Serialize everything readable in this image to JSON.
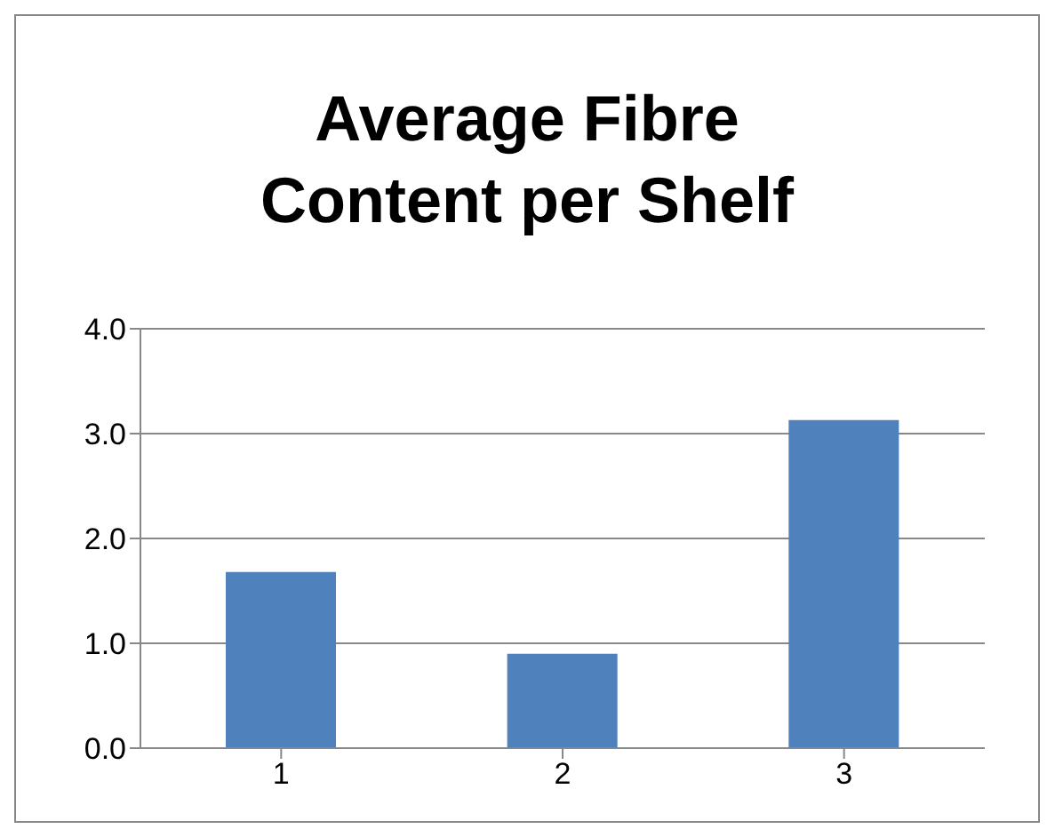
{
  "chart_data": {
    "type": "bar",
    "title": "Average Fibre Content per Shelf",
    "categories": [
      "1",
      "2",
      "3"
    ],
    "values": [
      1.68,
      0.9,
      3.13
    ],
    "color": "#4f81bd",
    "ylim": [
      0,
      4
    ],
    "yticks": [
      {
        "value": 0,
        "label": "0.0"
      },
      {
        "value": 1,
        "label": "1.0"
      },
      {
        "value": 2,
        "label": "2.0"
      },
      {
        "value": 3,
        "label": "3.0"
      },
      {
        "value": 4,
        "label": "4.0"
      }
    ],
    "grid": "y"
  }
}
